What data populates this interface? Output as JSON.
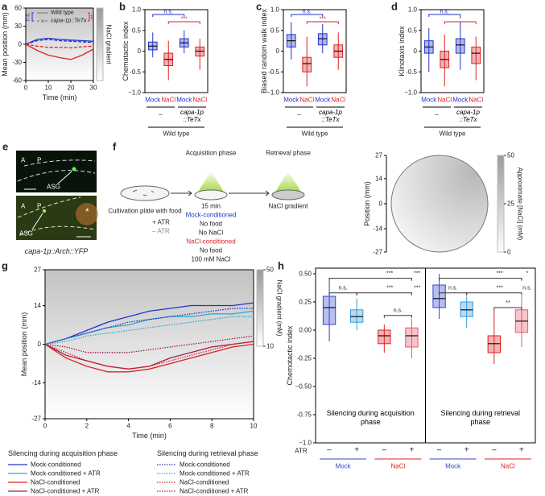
{
  "chart_data": [
    {
      "panel": "a",
      "type": "line",
      "ylabel": "Mean position (mm)",
      "xlabel": "Time (min)",
      "x": [
        0,
        5,
        10,
        15,
        20,
        25,
        30
      ],
      "xlim": [
        0,
        30
      ],
      "xticks": [
        0,
        10,
        20,
        30
      ],
      "ylim": [
        -60,
        60
      ],
      "yticks": [
        -60,
        -30,
        0,
        30,
        60
      ],
      "legend": [
        "Wild type",
        "capa-1p::TeTx"
      ],
      "series": [
        {
          "color": "#2233cc",
          "dash": "solid",
          "values": [
            0,
            8,
            10,
            8,
            7,
            6,
            5
          ]
        },
        {
          "color": "#2233cc",
          "dash": "dashed",
          "values": [
            0,
            6,
            8,
            6,
            5,
            4,
            3
          ]
        },
        {
          "color": "#dd2222",
          "dash": "solid",
          "values": [
            0,
            -10,
            -18,
            -22,
            -25,
            -18,
            -8
          ]
        },
        {
          "color": "#dd2222",
          "dash": "dashed",
          "values": [
            0,
            -3,
            -5,
            -5,
            -6,
            -4,
            -3
          ]
        }
      ],
      "annotations": [
        "n.s.",
        "**"
      ],
      "colorbar_label": "NaCl gradient"
    },
    {
      "panel": "b",
      "type": "box",
      "ylabel": "Chemotactic index",
      "categories": [
        "Mock",
        "NaCl",
        "Mock",
        "NaCl"
      ],
      "colors": [
        "#2233cc",
        "#dd2222",
        "#2233cc",
        "#dd2222"
      ],
      "ylim": [
        -1,
        1
      ],
      "yticks": [
        {
          "value": -1,
          "label": "−1.0"
        },
        -0.5,
        0,
        0.5,
        {
          "value": 1,
          "label": "1.0"
        }
      ],
      "boxes": [
        {
          "whislo": -0.15,
          "q1": 0.03,
          "median": 0.12,
          "q3": 0.22,
          "whishi": 0.45
        },
        {
          "whislo": -0.7,
          "q1": -0.35,
          "median": -0.2,
          "q3": -0.05,
          "whishi": 0.25
        },
        {
          "whislo": -0.05,
          "q1": 0.1,
          "median": 0.2,
          "q3": 0.3,
          "whishi": 0.5
        },
        {
          "whislo": -0.45,
          "q1": -0.12,
          "median": 0,
          "q3": 0.1,
          "whishi": 0.3
        }
      ],
      "group_labels": [
        "–",
        "capa-1p ::TeTx",
        "Wild type"
      ],
      "annotations": [
        "n.s.",
        "***"
      ]
    },
    {
      "panel": "c",
      "type": "box",
      "ylabel": "Biased random walk index",
      "categories": [
        "Mock",
        "NaCl",
        "Mock",
        "NaCl"
      ],
      "colors": [
        "#2233cc",
        "#dd2222",
        "#2233cc",
        "#dd2222"
      ],
      "ylim": [
        -1,
        1
      ],
      "yticks": [
        {
          "value": -1,
          "label": "−1.0"
        },
        -0.5,
        0,
        0.5,
        {
          "value": 1,
          "label": "1.0"
        }
      ],
      "boxes": [
        {
          "whislo": -0.2,
          "q1": 0.1,
          "median": 0.25,
          "q3": 0.4,
          "whishi": 0.7
        },
        {
          "whislo": -0.85,
          "q1": -0.5,
          "median": -0.3,
          "q3": -0.15,
          "whishi": 0.35
        },
        {
          "whislo": -0.05,
          "q1": 0.15,
          "median": 0.3,
          "q3": 0.42,
          "whishi": 0.65
        },
        {
          "whislo": -0.45,
          "q1": -0.15,
          "median": 0,
          "q3": 0.15,
          "whishi": 0.45
        }
      ],
      "group_labels": [
        "–",
        "capa-1p ::TeTx",
        "Wild type"
      ],
      "annotations": [
        "n.s.",
        "***"
      ]
    },
    {
      "panel": "d",
      "type": "box",
      "ylabel": "Klinotaxis index",
      "categories": [
        "Mock",
        "NaCl",
        "Mock",
        "NaCl"
      ],
      "colors": [
        "#2233cc",
        "#dd2222",
        "#2233cc",
        "#dd2222"
      ],
      "ylim": [
        -1,
        1
      ],
      "yticks": [
        {
          "value": -1,
          "label": "−1.0"
        },
        -0.5,
        0,
        0.5,
        {
          "value": 1,
          "label": "1.0"
        }
      ],
      "boxes": [
        {
          "whislo": -0.5,
          "q1": -0.05,
          "median": 0.1,
          "q3": 0.25,
          "whishi": 0.55
        },
        {
          "whislo": -0.85,
          "q1": -0.4,
          "median": -0.2,
          "q3": 0,
          "whishi": 0.4
        },
        {
          "whislo": -0.45,
          "q1": -0.05,
          "median": 0.15,
          "q3": 0.3,
          "whishi": 0.7
        },
        {
          "whislo": -0.7,
          "q1": -0.3,
          "median": -0.05,
          "q3": 0.1,
          "whishi": 0.35
        }
      ],
      "group_labels": [
        "–",
        "capa-1p ::TeTx",
        "Wild type"
      ],
      "annotations": [
        "n.s.",
        "*"
      ]
    },
    {
      "type": "trajectory",
      "ylabel": "Position (mm)",
      "ylim": [
        -27,
        27
      ],
      "yticks": [
        -27,
        -14,
        0,
        14,
        27
      ],
      "colorbar_label": "Approximate [NaCl] (mM)",
      "clim": [
        0,
        50
      ],
      "cticks": [
        0,
        25,
        50
      ]
    },
    {
      "panel": "g",
      "type": "line",
      "ylabel": "Mean position (mm)",
      "xlabel": "Time (min)",
      "x": [
        0,
        1,
        2,
        3,
        4,
        5,
        6,
        7,
        8,
        9,
        10
      ],
      "xlim": [
        0,
        10
      ],
      "xticks": [
        0,
        2,
        4,
        6,
        8,
        10
      ],
      "ylim": [
        -27,
        27
      ],
      "yticks": [
        -27,
        -14,
        0,
        14,
        27
      ],
      "legend_titles": [
        "Silencing during acquisition phase",
        "Silencing during retrieval phase"
      ],
      "series": [
        {
          "name": "Mock-conditioned",
          "color": "#2233cc",
          "dash": "solid",
          "values": [
            0,
            2,
            5,
            8,
            10,
            12,
            13,
            14,
            14,
            14,
            15
          ]
        },
        {
          "name": "Mock-conditioned + ATR",
          "color": "#33aacc",
          "dash": "solid",
          "values": [
            0,
            2,
            4,
            6,
            7,
            9,
            10,
            10,
            11,
            11,
            12
          ]
        },
        {
          "name": "NaCl-conditioned",
          "color": "#dd2222",
          "dash": "solid",
          "values": [
            0,
            -5,
            -8,
            -10,
            -10,
            -9,
            -7,
            -5,
            -3,
            -1,
            0
          ]
        },
        {
          "name": "NaCl-conditioned + ATR",
          "color": "#a0204a",
          "dash": "solid",
          "values": [
            0,
            -4,
            -6,
            -8,
            -9,
            -8,
            -5,
            -3,
            -1,
            0,
            1
          ]
        },
        {
          "name": "Mock-conditioned",
          "color": "#2233cc",
          "dash": "dotted",
          "values": [
            0,
            2,
            4,
            6,
            8,
            9,
            10,
            11,
            12,
            13,
            13
          ]
        },
        {
          "name": "Mock-conditioned + ATR",
          "color": "#33aacc",
          "dash": "dotted",
          "values": [
            0,
            1,
            3,
            4,
            5,
            6,
            7,
            8,
            9,
            10,
            10
          ]
        },
        {
          "name": "NaCl-conditioned",
          "color": "#dd2222",
          "dash": "dotted",
          "values": [
            0,
            -3,
            -6,
            -8,
            -9,
            -8,
            -6,
            -4,
            -2,
            0,
            1
          ]
        },
        {
          "name": "NaCl-conditioned + ATR",
          "color": "#a0204a",
          "dash": "dotted",
          "values": [
            0,
            -1,
            -3,
            -3,
            -3,
            -2,
            -1,
            0,
            1,
            2,
            3
          ]
        }
      ],
      "colorbar_label": "NaCl gradient (mM)",
      "clim": [
        10,
        50
      ],
      "cticks": [
        10,
        50
      ]
    },
    {
      "panel": "h",
      "type": "box",
      "ylabel": "Chemotactic index",
      "categories": [
        "–",
        "+",
        "–",
        "+",
        "–",
        "+",
        "–",
        "+"
      ],
      "row_label": "ATR",
      "colors": [
        "#3344cc",
        "#3399dd",
        "#dd2222",
        "#e85a6a",
        "#3344cc",
        "#3399dd",
        "#dd2222",
        "#e85a6a"
      ],
      "conditions": [
        "Mock",
        "NaCl",
        "Mock",
        "NaCl"
      ],
      "groups": [
        "Silencing during acquisition phase",
        "Silencing during retrieval phase"
      ],
      "ylim": [
        -1,
        0.55
      ],
      "yticks": [
        {
          "value": -1,
          "label": "−1.0"
        },
        -0.75,
        {
          "value": -0.5,
          "label": "−0.50"
        },
        -0.25,
        {
          "value": 0,
          "label": "0.00"
        },
        0.25,
        {
          "value": 0.5,
          "label": "0.50"
        }
      ],
      "boxes": [
        {
          "whislo": -0.1,
          "q1": 0.05,
          "median": 0.2,
          "q3": 0.3,
          "whishi": 0.45
        },
        {
          "whislo": 0,
          "q1": 0.07,
          "median": 0.12,
          "q3": 0.18,
          "whishi": 0.28
        },
        {
          "whislo": -0.2,
          "q1": -0.12,
          "median": -0.05,
          "q3": 0,
          "whishi": 0.05
        },
        {
          "whislo": -0.25,
          "q1": -0.15,
          "median": -0.05,
          "q3": 0.02,
          "whishi": 0.1
        },
        {
          "whislo": 0.1,
          "q1": 0.2,
          "median": 0.28,
          "q3": 0.4,
          "whishi": 0.5
        },
        {
          "whislo": 0.02,
          "q1": 0.12,
          "median": 0.18,
          "q3": 0.25,
          "whishi": 0.3
        },
        {
          "whislo": -0.3,
          "q1": -0.2,
          "median": -0.12,
          "q3": -0.05,
          "whishi": 0.18
        },
        {
          "whislo": -0.15,
          "q1": -0.02,
          "median": 0.08,
          "q3": 0.18,
          "whishi": 0.3
        }
      ],
      "annotations": [
        "n.s.",
        "***",
        "***",
        "***",
        "***",
        "n.s.",
        "n.s.",
        "***",
        "*",
        "***",
        "n.s.",
        "**"
      ]
    }
  ],
  "images": {
    "panel": "e",
    "top": {
      "anterior": "A",
      "posterior": "P",
      "neuron": "ASG"
    },
    "bottom": {
      "anterior": "A",
      "posterior": "P",
      "neuron": "ASG",
      "mark": "*"
    },
    "caption": "capa-1p::Arch::YFP"
  },
  "diagram": {
    "panel": "f",
    "acquisition": "Acquisition phase",
    "retrieval": "Retrieval phase",
    "plate": "Cultivation plate with food",
    "atr_plus": "+ ATR",
    "atr_minus": "– ATR",
    "duration": "15 min",
    "mock": "Mock-conditioned",
    "mock_lines": [
      "No food",
      "No NaCl"
    ],
    "nacl": "NaCl-conditioned",
    "nacl_lines": [
      "No food",
      "100 mM NaCl"
    ],
    "gradient": "NaCl gradient"
  }
}
